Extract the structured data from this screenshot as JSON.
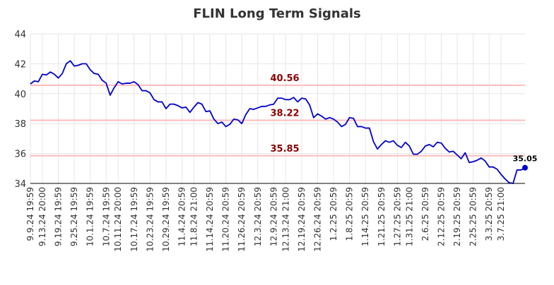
{
  "chart_data": {
    "type": "line",
    "title": "FLIN Long Term Signals",
    "xlabel": "",
    "ylabel": "",
    "ylim": [
      34,
      44
    ],
    "yticks": [
      34,
      36,
      38,
      40,
      42,
      44
    ],
    "grid": true,
    "x_tick_labels": [
      "9.9.24 19:59",
      "9.13.24 20:00",
      "9.19.24 19:59",
      "9.25.24 19:59",
      "10.1.24 19:59",
      "10.7.24 19:59",
      "10.11.24 20:00",
      "10.17.24 19:59",
      "10.23.24 19:59",
      "10.29.24 19:59",
      "11.4.24 20:59",
      "11.8.24 21:00",
      "11.14.24 20:59",
      "11.20.24 20:59",
      "11.26.24 20:59",
      "12.3.24 20:59",
      "12.9.24 20:59",
      "12.13.24 21:00",
      "12.19.24 20:59",
      "12.26.24 20:59",
      "1.2.25 20:59",
      "1.8.25 20:59",
      "1.14.25 20:59",
      "1.21.25 20:59",
      "1.27.25 20:59",
      "1.31.25 21:00",
      "2.6.25 20:59",
      "2.12.25 20:59",
      "2.19.25 20:59",
      "2.25.25 20:59",
      "3.3.25 20:59",
      "3.7.25 21:00"
    ],
    "x_tick_positions": [
      0,
      3,
      7,
      11,
      15,
      19,
      22,
      26,
      30,
      34,
      38,
      41,
      45,
      49,
      53,
      57,
      61,
      64,
      68,
      72,
      76,
      80,
      84,
      88,
      92,
      95,
      99,
      103,
      107,
      111,
      115,
      118
    ],
    "series": [
      {
        "color": "#0000cc",
        "values": [
          40.65,
          40.85,
          40.8,
          41.3,
          41.25,
          41.45,
          41.3,
          41.05,
          41.35,
          42.0,
          42.2,
          41.85,
          41.9,
          42.0,
          42.0,
          41.6,
          41.35,
          41.3,
          40.9,
          40.7,
          39.9,
          40.4,
          40.8,
          40.65,
          40.7,
          40.7,
          40.8,
          40.6,
          40.2,
          40.2,
          40.05,
          39.6,
          39.45,
          39.45,
          39.0,
          39.3,
          39.3,
          39.2,
          39.05,
          39.1,
          38.75,
          39.1,
          39.4,
          39.3,
          38.8,
          38.85,
          38.3,
          38.0,
          38.1,
          37.8,
          37.95,
          38.3,
          38.25,
          38.0,
          38.6,
          39.0,
          38.95,
          39.05,
          39.15,
          39.15,
          39.25,
          39.3,
          39.7,
          39.7,
          39.6,
          39.6,
          39.75,
          39.45,
          39.7,
          39.65,
          39.25,
          38.4,
          38.65,
          38.5,
          38.3,
          38.4,
          38.3,
          38.1,
          37.8,
          37.95,
          38.4,
          38.35,
          37.8,
          37.8,
          37.7,
          37.7,
          36.8,
          36.3,
          36.6,
          36.85,
          36.75,
          36.85,
          36.55,
          36.4,
          36.75,
          36.5,
          35.95,
          35.95,
          36.15,
          36.5,
          36.6,
          36.45,
          36.75,
          36.7,
          36.35,
          36.1,
          36.15,
          35.9,
          35.65,
          36.05,
          35.4,
          35.45,
          35.55,
          35.7,
          35.5,
          35.1,
          35.1,
          34.95,
          34.6,
          34.3,
          34.05,
          34.0,
          34.9,
          34.9,
          35.05
        ]
      }
    ],
    "hlines": [
      {
        "value": 40.56,
        "label": "40.56",
        "color": "#ffbbbb",
        "label_color": "#8b0000"
      },
      {
        "value": 38.22,
        "label": "38.22",
        "color": "#ffbbbb",
        "label_color": "#8b0000"
      },
      {
        "value": 35.85,
        "label": "35.85",
        "color": "#ffbbbb",
        "label_color": "#8b0000"
      }
    ],
    "last_point_label": "35.05"
  }
}
